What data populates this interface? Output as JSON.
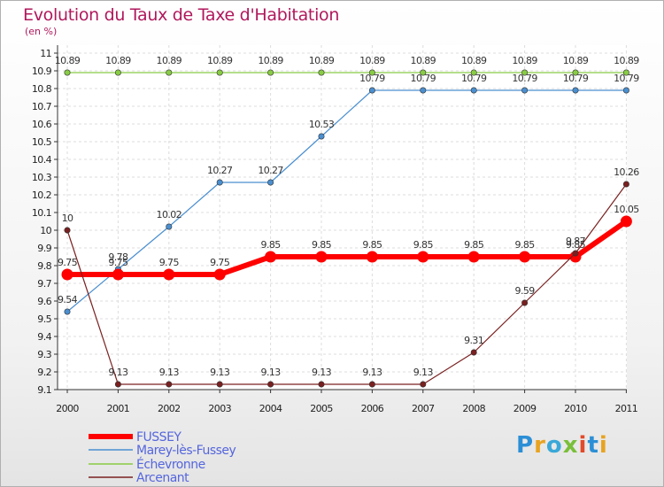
{
  "chart_data": {
    "type": "line",
    "title": "Evolution du Taux de Taxe d'Habitation",
    "ylabel": "(en %)",
    "x": [
      "2000",
      "2001",
      "2002",
      "2003",
      "2004",
      "2005",
      "2006",
      "2007",
      "2008",
      "2009",
      "2010",
      "2011"
    ],
    "ylim": [
      9.1,
      10.9
    ],
    "yticks": [
      "9.1",
      "9.2",
      "9.3",
      "9.4",
      "9.5",
      "9.6",
      "9.7",
      "9.8",
      "9.9",
      "10",
      "10.1",
      "10.2",
      "10.3",
      "10.4",
      "10.5",
      "10.6",
      "10.7",
      "10.8",
      "10.9",
      "11"
    ],
    "grid": true,
    "legend": "bottom-left",
    "series": [
      {
        "name": "FUSSEY",
        "color": "#ff0000",
        "values": [
          9.75,
          9.75,
          9.75,
          9.75,
          9.85,
          9.85,
          9.85,
          9.85,
          9.85,
          9.85,
          9.85,
          10.05
        ],
        "labels": [
          "9.75",
          "9.75",
          "9.75",
          "9.75",
          "9.85",
          "9.85",
          "9.85",
          "9.85",
          "9.85",
          "9.85",
          "9.85",
          "10.05"
        ]
      },
      {
        "name": "Marey-lès-Fussey",
        "color": "#4a8fd0",
        "values": [
          9.54,
          9.78,
          10.02,
          10.27,
          10.27,
          10.53,
          10.79,
          10.79,
          10.79,
          10.79,
          10.79,
          10.79
        ],
        "labels": [
          "9.54",
          "9.78",
          "10.02",
          "10.27",
          "10.27",
          "10.53",
          "10.79",
          "10.79",
          "10.79",
          "10.79",
          "10.79",
          "10.79"
        ]
      },
      {
        "name": "Échevronne",
        "color": "#88cc44",
        "values": [
          10.89,
          10.89,
          10.89,
          10.89,
          10.89,
          10.89,
          10.89,
          10.89,
          10.89,
          10.89,
          10.89,
          10.89
        ],
        "labels": [
          "10.89",
          "10.89",
          "10.89",
          "10.89",
          "10.89",
          "10.89",
          "10.89",
          "10.89",
          "10.89",
          "10.89",
          "10.89",
          "10.89"
        ]
      },
      {
        "name": "Arcenant",
        "color": "#7a2020",
        "values": [
          10,
          9.13,
          9.13,
          9.13,
          9.13,
          9.13,
          9.13,
          9.13,
          9.31,
          9.59,
          9.87,
          10.26
        ],
        "labels": [
          "10",
          "9.13",
          "9.13",
          "9.13",
          "9.13",
          "9.13",
          "9.13",
          "9.13",
          "9.31",
          "9.59",
          "9.87",
          "10.26"
        ]
      }
    ]
  },
  "logo": {
    "text": "Proxiti"
  }
}
